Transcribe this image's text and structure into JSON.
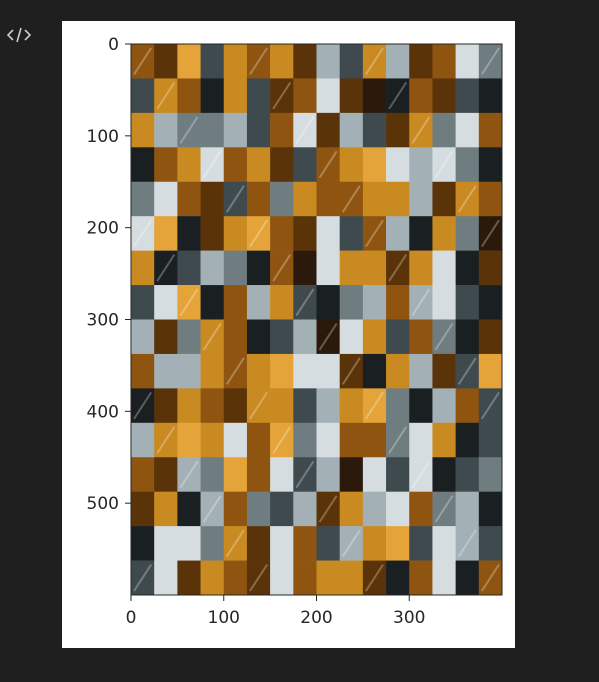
{
  "toolbar": {
    "code_toggle_icon": "code-brackets-icon"
  },
  "colors": {
    "background": "#1f1f1f",
    "card": "#ffffff",
    "axis": "#262626",
    "tile_palette": [
      "#c98a22",
      "#8f5510",
      "#5a3308",
      "#1a1f22",
      "#3f4a4e",
      "#6f7c80",
      "#a3b1b7",
      "#d6dde0",
      "#e5a43a",
      "#2b1a0b"
    ]
  },
  "chart_data": {
    "type": "heatmap",
    "title": "",
    "xlabel": "",
    "ylabel": "",
    "xlim": [
      0,
      400
    ],
    "ylim": [
      600,
      0
    ],
    "x_ticks": [
      0,
      100,
      200,
      300
    ],
    "y_ticks": [
      0,
      100,
      200,
      300,
      400,
      500
    ],
    "x_tick_labels": [
      "0",
      "100",
      "200",
      "300"
    ],
    "y_tick_labels": [
      "0",
      "100",
      "200",
      "300",
      "400",
      "500"
    ],
    "grid": false,
    "legend": "none",
    "tiles": {
      "columns": 16,
      "rows": 16,
      "tile_width": 25,
      "tile_height": 37.5
    },
    "cells": [
      [
        1,
        2,
        8,
        4,
        0,
        1,
        0,
        2,
        6,
        4,
        0,
        6,
        2,
        1,
        7,
        5
      ],
      [
        4,
        0,
        1,
        3,
        0,
        4,
        2,
        1,
        7,
        2,
        9,
        3,
        1,
        2,
        4,
        3
      ],
      [
        0,
        6,
        5,
        5,
        6,
        4,
        1,
        7,
        2,
        6,
        4,
        2,
        0,
        5,
        7,
        1
      ],
      [
        3,
        1,
        0,
        7,
        1,
        0,
        2,
        4,
        1,
        0,
        8,
        7,
        6,
        7,
        5,
        3
      ],
      [
        5,
        7,
        1,
        2,
        4,
        1,
        5,
        0,
        1,
        1,
        0,
        0,
        6,
        2,
        0,
        1
      ],
      [
        7,
        8,
        3,
        2,
        0,
        8,
        1,
        2,
        7,
        4,
        1,
        6,
        3,
        0,
        5,
        9
      ],
      [
        0,
        3,
        4,
        6,
        5,
        3,
        1,
        9,
        7,
        0,
        0,
        2,
        0,
        7,
        3,
        2
      ],
      [
        4,
        7,
        8,
        3,
        1,
        6,
        0,
        4,
        3,
        5,
        6,
        1,
        6,
        7,
        4,
        3
      ],
      [
        6,
        2,
        5,
        0,
        1,
        3,
        4,
        6,
        9,
        7,
        0,
        4,
        1,
        5,
        3,
        2
      ],
      [
        1,
        6,
        6,
        0,
        1,
        0,
        8,
        7,
        7,
        2,
        3,
        0,
        6,
        2,
        4,
        8
      ],
      [
        3,
        2,
        0,
        1,
        2,
        0,
        0,
        4,
        6,
        0,
        8,
        5,
        3,
        6,
        1,
        4
      ],
      [
        6,
        0,
        8,
        0,
        7,
        1,
        8,
        5,
        7,
        1,
        1,
        5,
        7,
        0,
        3,
        4
      ],
      [
        1,
        2,
        6,
        5,
        8,
        1,
        7,
        4,
        6,
        9,
        7,
        4,
        7,
        3,
        4,
        5
      ],
      [
        2,
        0,
        3,
        6,
        1,
        5,
        4,
        6,
        2,
        0,
        6,
        7,
        1,
        5,
        6,
        3
      ],
      [
        3,
        7,
        7,
        5,
        0,
        2,
        7,
        1,
        4,
        6,
        0,
        8,
        4,
        7,
        6,
        4
      ],
      [
        4,
        7,
        2,
        0,
        1,
        2,
        7,
        1,
        0,
        0,
        2,
        3,
        1,
        7,
        3,
        1
      ]
    ]
  }
}
